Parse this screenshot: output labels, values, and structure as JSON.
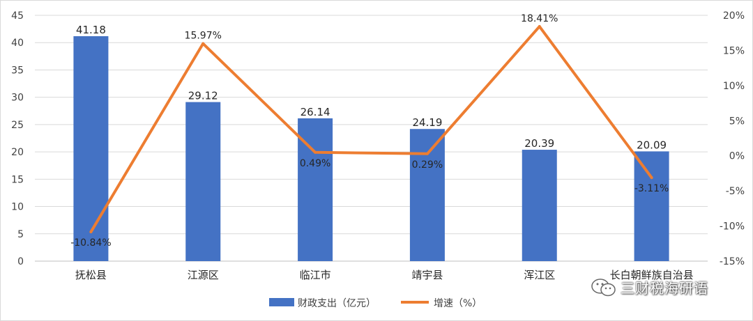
{
  "chart_data": {
    "type": "bar+line",
    "categories": [
      "抚松县",
      "江源区",
      "临江市",
      "靖宇县",
      "浑江区",
      "长白朝鲜族自治县"
    ],
    "series": [
      {
        "name": "财政支出（亿元）",
        "type": "bar",
        "axis": "left",
        "color": "#4472C4",
        "values": [
          41.18,
          29.12,
          26.14,
          24.19,
          20.39,
          20.09
        ],
        "labels": [
          "41.18",
          "29.12",
          "26.14",
          "24.19",
          "20.39",
          "20.09"
        ]
      },
      {
        "name": "增速（%）",
        "type": "line",
        "axis": "right",
        "color": "#ED7D31",
        "values": [
          -10.84,
          15.97,
          0.49,
          0.29,
          18.41,
          -3.11
        ],
        "labels": [
          "-10.84%",
          "15.97%",
          "0.49%",
          "0.29%",
          "18.41%",
          "-3.11%"
        ]
      }
    ],
    "y_left": {
      "ylim": [
        0,
        45
      ],
      "ticks": [
        "0",
        "5",
        "10",
        "15",
        "20",
        "25",
        "30",
        "35",
        "40",
        "45"
      ]
    },
    "y_right": {
      "ylim": [
        -15,
        20
      ],
      "ticks": [
        "-15%",
        "-10%",
        "-5%",
        "0%",
        "5%",
        "10%",
        "15%",
        "20%"
      ]
    },
    "grid": true,
    "legend_position": "bottom"
  },
  "watermark": {
    "text": "三财税海研语",
    "icon": "wechat-icon"
  }
}
